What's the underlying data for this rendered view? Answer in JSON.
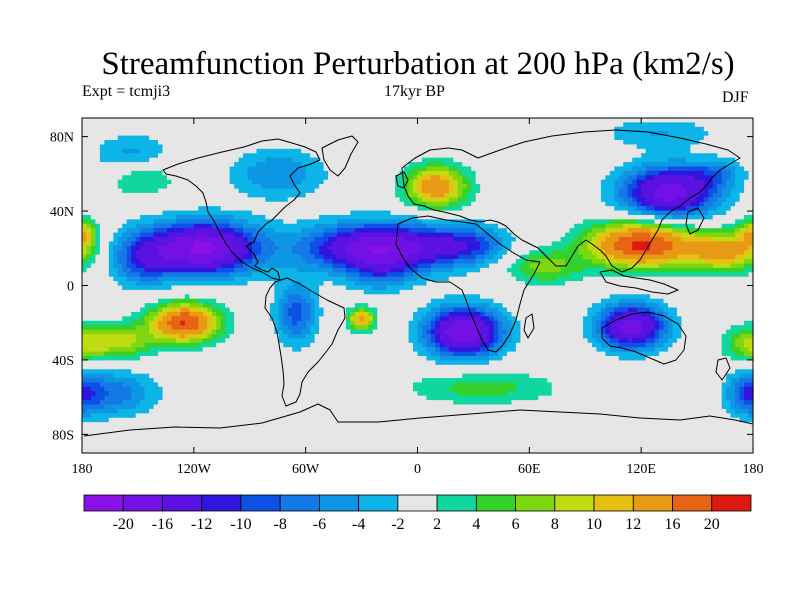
{
  "title": "Streamfunction Perturbation at 200 hPa (km2/s)",
  "left_string": "Expt = tcmji3",
  "center_string": "17kyr BP",
  "right_string": "DJF",
  "chart_data": {
    "type": "heatmap",
    "projection": "cylindrical-equidistant",
    "variable": "streamfunction perturbation at 200 hPa",
    "units": "km2/s",
    "lon_range": [
      -180,
      180
    ],
    "lat_range": [
      -90,
      90
    ],
    "x_ticks": [
      {
        "value": -180,
        "label": "180"
      },
      {
        "value": -120,
        "label": "120W"
      },
      {
        "value": -60,
        "label": "60W"
      },
      {
        "value": 0,
        "label": "0"
      },
      {
        "value": 60,
        "label": "60E"
      },
      {
        "value": 120,
        "label": "120E"
      },
      {
        "value": 180,
        "label": "180"
      }
    ],
    "y_ticks": [
      {
        "value": 80,
        "label": "80N"
      },
      {
        "value": 40,
        "label": "40N"
      },
      {
        "value": 0,
        "label": "0"
      },
      {
        "value": -40,
        "label": "40S"
      },
      {
        "value": -80,
        "label": "80S"
      }
    ],
    "colorbar": {
      "levels": [
        -20,
        -16,
        -12,
        -10,
        -8,
        -6,
        -4,
        -2,
        2,
        4,
        6,
        8,
        10,
        12,
        16,
        20
      ],
      "labels": [
        "-20",
        "-16",
        "-12",
        "-10",
        "-8",
        "-6",
        "-4",
        "-2",
        "2",
        "4",
        "6",
        "8",
        "10",
        "12",
        "16",
        "20"
      ],
      "colors": [
        "#8a10e6",
        "#7210e6",
        "#5a12e2",
        "#2f16de",
        "#0c50e6",
        "#1478e6",
        "#0c96e4",
        "#0cb4e8",
        "#e6e6e6",
        "#10d6a0",
        "#34d22a",
        "#7ed610",
        "#bedc10",
        "#e8c012",
        "#e89a14",
        "#e86414",
        "#dc1a12"
      ]
    },
    "centers": [
      {
        "lon": -115,
        "lat": 20,
        "value": -21,
        "rlon": 30,
        "rlat": 14
      },
      {
        "lon": -148,
        "lat": 14,
        "value": -8,
        "rlon": 16,
        "rlat": 14
      },
      {
        "lon": -20,
        "lat": 20,
        "value": -20,
        "rlon": 38,
        "rlat": 13
      },
      {
        "lon": 28,
        "lat": 22,
        "value": -8,
        "rlon": 20,
        "rlat": 10
      },
      {
        "lon": 135,
        "lat": 50,
        "value": -18,
        "rlon": 25,
        "rlat": 14
      },
      {
        "lon": 160,
        "lat": 60,
        "value": -5,
        "rlon": 14,
        "rlat": 8
      },
      {
        "lon": 25,
        "lat": -25,
        "value": -20,
        "rlon": 20,
        "rlat": 13
      },
      {
        "lon": 115,
        "lat": -22,
        "value": -18,
        "rlon": 18,
        "rlat": 12
      },
      {
        "lon": -65,
        "lat": -15,
        "value": -9,
        "rlon": 11,
        "rlat": 16
      },
      {
        "lon": -162,
        "lat": -58,
        "value": -7,
        "rlon": 22,
        "rlat": 12
      },
      {
        "lon": -153,
        "lat": 70,
        "value": -5,
        "rlon": 20,
        "rlat": 11
      },
      {
        "lon": -75,
        "lat": 60,
        "value": -6,
        "rlon": 25,
        "rlat": 13
      },
      {
        "lon": 178,
        "lat": -58,
        "value": -8,
        "rlon": 12,
        "rlat": 12
      },
      {
        "lon": -20,
        "lat": 5,
        "value": -4,
        "rlon": 16,
        "rlat": 10
      },
      {
        "lon": 35,
        "lat": -55,
        "value": 5,
        "rlon": 40,
        "rlat": 9
      },
      {
        "lon": 120,
        "lat": 22,
        "value": 21,
        "rlon": 28,
        "rlat": 12
      },
      {
        "lon": 165,
        "lat": 18,
        "value": 13,
        "rlon": 20,
        "rlat": 10
      },
      {
        "lon": 10,
        "lat": 53,
        "value": 15,
        "rlon": 16,
        "rlat": 11
      },
      {
        "lon": -125,
        "lat": -20,
        "value": 20,
        "rlon": 18,
        "rlat": 10
      },
      {
        "lon": -160,
        "lat": -30,
        "value": 9,
        "rlon": 18,
        "rlat": 9
      },
      {
        "lon": -30,
        "lat": -18,
        "value": 13,
        "rlon": 7,
        "rlat": 6
      },
      {
        "lon": 178,
        "lat": -32,
        "value": 7,
        "rlon": 14,
        "rlat": 10
      },
      {
        "lon": -180,
        "lat": 28,
        "value": 10,
        "rlon": 8,
        "rlat": 8
      },
      {
        "lon": 68,
        "lat": 10,
        "value": 7,
        "rlon": 20,
        "rlat": 9
      },
      {
        "lon": -148,
        "lat": 58,
        "value": 5,
        "rlon": 18,
        "rlat": 10
      },
      {
        "lon": 130,
        "lat": 82,
        "value": -4,
        "rlon": 30,
        "rlat": 8
      }
    ]
  }
}
